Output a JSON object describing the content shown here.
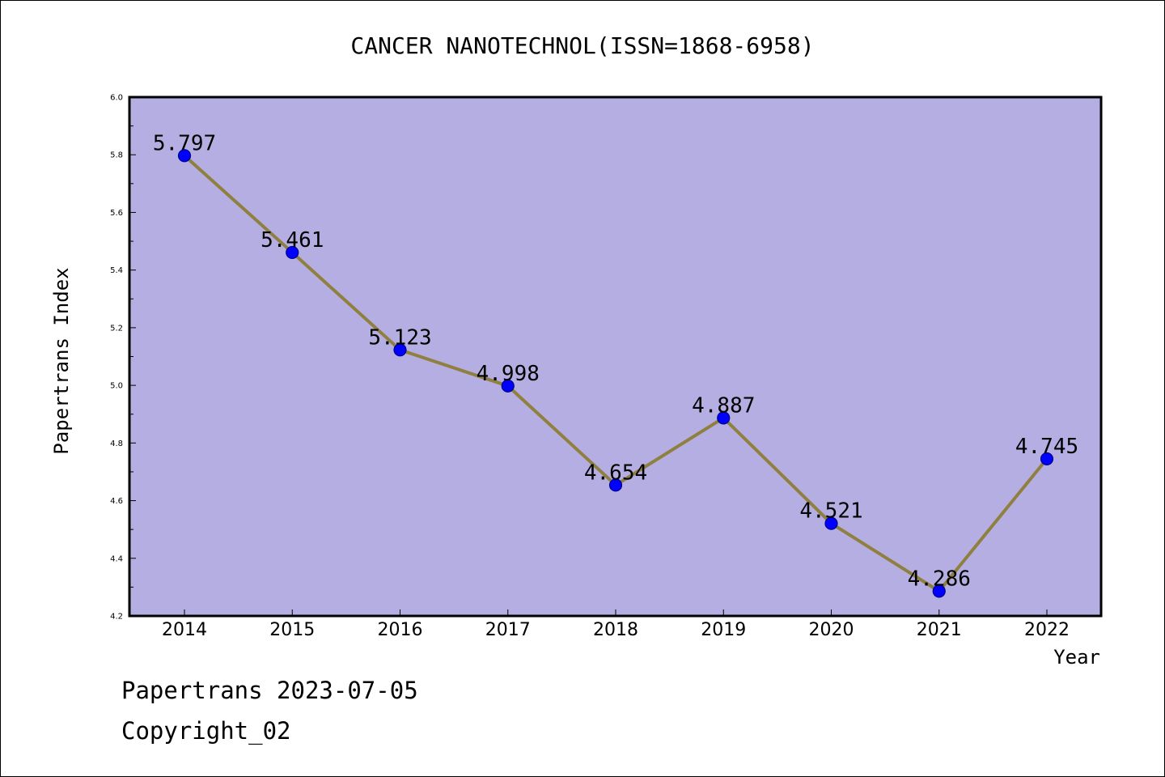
{
  "chart_data": {
    "type": "line",
    "title": "CANCER NANOTECHNOL(ISSN=1868-6958)",
    "xlabel": "Year",
    "ylabel": "Papertrans Index",
    "categories": [
      "2014",
      "2015",
      "2016",
      "2017",
      "2018",
      "2019",
      "2020",
      "2021",
      "2022"
    ],
    "values": [
      5.797,
      5.461,
      5.123,
      4.998,
      4.654,
      4.887,
      4.521,
      4.286,
      4.745
    ],
    "data_labels": [
      "5.797",
      "5.461",
      "5.123",
      "4.998",
      "4.654",
      "4.887",
      "4.521",
      "4.286",
      "4.745"
    ],
    "ylim": [
      4.2,
      6.0
    ],
    "yticks": [
      "4.2",
      "4.4",
      "4.6",
      "4.8",
      "5.0",
      "5.2",
      "5.4",
      "5.6",
      "5.8",
      "6.0"
    ],
    "grid": false,
    "legend": "none"
  },
  "footer": {
    "date_line": "Papertrans 2023-07-05",
    "copyright_line": "Copyright_02"
  },
  "colors": {
    "plot_background": "#b5aee2",
    "line": "#8f8040",
    "marker_fill": "#0000ff",
    "marker_edge": "#00008b",
    "axis": "#000000"
  }
}
